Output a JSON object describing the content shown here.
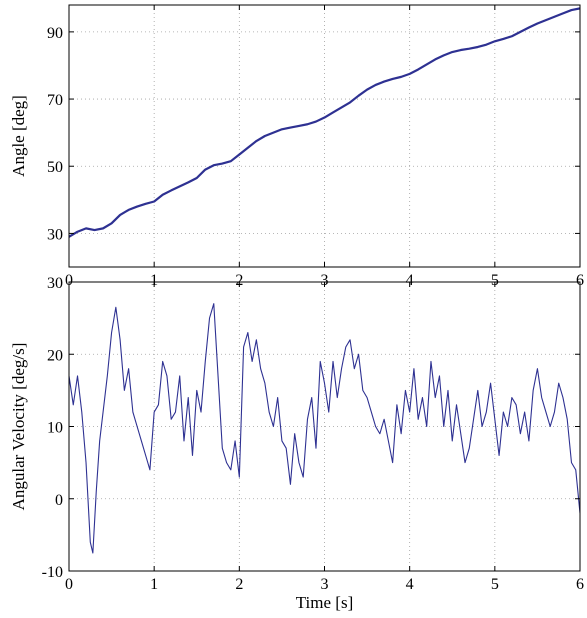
{
  "chart_data": [
    {
      "type": "line",
      "xlabel": "",
      "ylabel": "Angle [deg]",
      "xlim": [
        0,
        6
      ],
      "ylim": [
        20,
        98
      ],
      "x_ticks": [
        0,
        1,
        2,
        3,
        4,
        5,
        6
      ],
      "y_ticks": [
        30,
        50,
        70,
        90
      ],
      "grid": true,
      "color": "#2e3192",
      "series": [
        {
          "x": [
            0,
            0.1,
            0.2,
            0.3,
            0.4,
            0.5,
            0.6,
            0.7,
            0.8,
            0.9,
            1.0,
            1.1,
            1.2,
            1.3,
            1.4,
            1.5,
            1.6,
            1.7,
            1.8,
            1.9,
            2.0,
            2.1,
            2.2,
            2.3,
            2.4,
            2.5,
            2.6,
            2.7,
            2.8,
            2.9,
            3.0,
            3.1,
            3.2,
            3.3,
            3.4,
            3.5,
            3.6,
            3.7,
            3.8,
            3.9,
            4.0,
            4.1,
            4.2,
            4.3,
            4.4,
            4.5,
            4.6,
            4.7,
            4.8,
            4.9,
            5.0,
            5.1,
            5.2,
            5.3,
            5.4,
            5.5,
            5.6,
            5.7,
            5.8,
            5.9,
            6.0
          ],
          "values": [
            29.0,
            30.5,
            31.5,
            31.0,
            31.5,
            33.0,
            35.5,
            37.0,
            38.0,
            38.8,
            39.5,
            41.5,
            42.8,
            44.0,
            45.2,
            46.5,
            49.0,
            50.3,
            50.8,
            51.5,
            53.5,
            55.5,
            57.5,
            59.0,
            60.0,
            61.0,
            61.5,
            62.0,
            62.5,
            63.3,
            64.5,
            66.0,
            67.5,
            69.0,
            71.0,
            72.8,
            74.2,
            75.2,
            76.0,
            76.6,
            77.5,
            78.8,
            80.3,
            81.8,
            83.0,
            84.0,
            84.6,
            85.0,
            85.5,
            86.2,
            87.2,
            87.9,
            88.7,
            90.0,
            91.3,
            92.5,
            93.5,
            94.5,
            95.5,
            96.5,
            97.0
          ]
        }
      ]
    },
    {
      "type": "line",
      "xlabel": "Time [s]",
      "ylabel": "Angular Velocity [deg/s]",
      "xlim": [
        0,
        6
      ],
      "ylim": [
        -10,
        30
      ],
      "x_ticks": [
        0,
        1,
        2,
        3,
        4,
        5,
        6
      ],
      "y_ticks": [
        -10,
        0,
        10,
        20,
        30
      ],
      "grid": true,
      "color": "#2e3192",
      "series": [
        {
          "x": [
            0,
            0.05,
            0.1,
            0.15,
            0.2,
            0.25,
            0.28,
            0.32,
            0.36,
            0.4,
            0.45,
            0.5,
            0.55,
            0.6,
            0.65,
            0.7,
            0.75,
            0.8,
            0.85,
            0.9,
            0.95,
            1.0,
            1.05,
            1.1,
            1.15,
            1.2,
            1.25,
            1.3,
            1.35,
            1.4,
            1.45,
            1.5,
            1.55,
            1.6,
            1.65,
            1.7,
            1.75,
            1.8,
            1.85,
            1.9,
            1.95,
            2.0,
            2.05,
            2.1,
            2.15,
            2.2,
            2.25,
            2.3,
            2.35,
            2.4,
            2.45,
            2.5,
            2.55,
            2.6,
            2.65,
            2.7,
            2.75,
            2.8,
            2.85,
            2.9,
            2.95,
            3.0,
            3.05,
            3.1,
            3.15,
            3.2,
            3.25,
            3.3,
            3.35,
            3.4,
            3.45,
            3.5,
            3.55,
            3.6,
            3.65,
            3.7,
            3.75,
            3.8,
            3.85,
            3.9,
            3.95,
            4.0,
            4.05,
            4.1,
            4.15,
            4.2,
            4.25,
            4.3,
            4.35,
            4.4,
            4.45,
            4.5,
            4.55,
            4.6,
            4.65,
            4.7,
            4.75,
            4.8,
            4.85,
            4.9,
            4.95,
            5.0,
            5.05,
            5.1,
            5.15,
            5.2,
            5.25,
            5.3,
            5.35,
            5.4,
            5.45,
            5.5,
            5.55,
            5.6,
            5.65,
            5.7,
            5.75,
            5.8,
            5.85,
            5.9,
            5.95,
            6.0
          ],
          "values": [
            17,
            13,
            17,
            12,
            5,
            -6,
            -7.5,
            1,
            8,
            12,
            17,
            23,
            26.5,
            22,
            15,
            18,
            12,
            10,
            8,
            6,
            4,
            12,
            13,
            19,
            17,
            11,
            12,
            17,
            8,
            14,
            6,
            15,
            12,
            19,
            25,
            27,
            17,
            7,
            5,
            4,
            8,
            3,
            21,
            23,
            19,
            22,
            18,
            16,
            12,
            10,
            14,
            8,
            7,
            2,
            9,
            5,
            3,
            11,
            14,
            7,
            19,
            16,
            12,
            19,
            14,
            18,
            21,
            22,
            18,
            20,
            15,
            14,
            12,
            10,
            9,
            11,
            8,
            5,
            13,
            9,
            15,
            12,
            18,
            11,
            14,
            10,
            19,
            14,
            17,
            10,
            15,
            8,
            13,
            9,
            5,
            7,
            11,
            15,
            10,
            12,
            16,
            11,
            6,
            12,
            10,
            14,
            13,
            9,
            12,
            8,
            15,
            18,
            14,
            12,
            10,
            12,
            16,
            14,
            11,
            5,
            4,
            -2
          ]
        }
      ]
    }
  ]
}
